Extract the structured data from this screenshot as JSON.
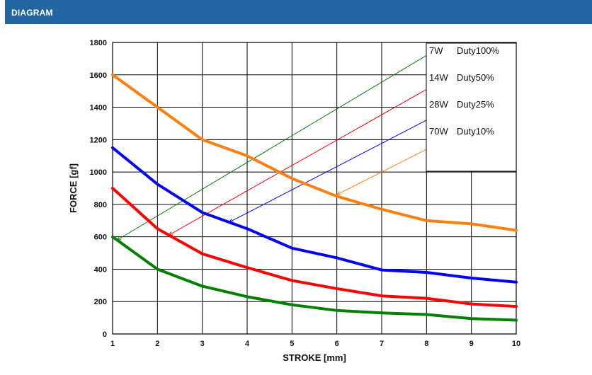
{
  "header": {
    "title": "DIAGRAM"
  },
  "chart_data": {
    "type": "line",
    "title": "",
    "xlabel": "STROKE [mm]",
    "ylabel": "FORCE [gf]",
    "xlim": [
      1,
      10
    ],
    "ylim": [
      0,
      1800
    ],
    "x_ticks": [
      1,
      2,
      3,
      4,
      5,
      6,
      7,
      8,
      9,
      10
    ],
    "y_ticks": [
      0,
      200,
      400,
      600,
      800,
      1000,
      1200,
      1400,
      1600,
      1800
    ],
    "x_tick_labels": [
      "1",
      "2",
      "3",
      "4",
      "5",
      "6",
      "7",
      "8",
      "9",
      "10"
    ],
    "y_tick_labels": [
      "0",
      "200",
      "400",
      "600",
      "800",
      "1000",
      "1200",
      "1400",
      "1600",
      "1800"
    ],
    "grid": true,
    "legend_position": "top-right",
    "series": [
      {
        "name": "70W Duty10%",
        "color": "#ff7f0e",
        "x": [
          1,
          2,
          3,
          4,
          5,
          6,
          7,
          8,
          9,
          10
        ],
        "y": [
          1600,
          1400,
          1200,
          1100,
          960,
          850,
          770,
          700,
          680,
          640
        ]
      },
      {
        "name": "28W Duty25%",
        "color": "#0000ff",
        "x": [
          1,
          2,
          3,
          4,
          5,
          6,
          7,
          8,
          9,
          10
        ],
        "y": [
          1150,
          925,
          750,
          650,
          530,
          470,
          395,
          380,
          345,
          320
        ]
      },
      {
        "name": "14W Duty50%",
        "color": "#ff0000",
        "x": [
          1,
          2,
          3,
          4,
          5,
          6,
          7,
          8,
          9,
          10
        ],
        "y": [
          900,
          650,
          495,
          410,
          330,
          280,
          235,
          220,
          185,
          170
        ]
      },
      {
        "name": "7W Duty100%",
        "color": "#008000",
        "x": [
          1,
          2,
          3,
          4,
          5,
          6,
          7,
          8,
          9,
          10
        ],
        "y": [
          600,
          400,
          295,
          230,
          180,
          145,
          130,
          120,
          95,
          85
        ]
      }
    ],
    "annotations": [
      {
        "label": "7W Duty100%",
        "color": "#008000",
        "from": [
          1.1,
          580
        ],
        "to": [
          8,
          1720
        ]
      },
      {
        "label": "14W Duty50%",
        "color": "#ff0000",
        "from": [
          2.25,
          610
        ],
        "to": [
          8,
          1510
        ]
      },
      {
        "label": "28W Duty25%",
        "color": "#0000ff",
        "from": [
          3.6,
          690
        ],
        "to": [
          8,
          1320
        ]
      },
      {
        "label": "70W Duty10%",
        "color": "#ff7f0e",
        "from": [
          6.0,
          860
        ],
        "to": [
          8,
          1140
        ]
      }
    ],
    "legend": [
      {
        "power": "7W",
        "duty": "Duty100%"
      },
      {
        "power": "14W",
        "duty": "Duty50%"
      },
      {
        "power": "28W",
        "duty": "Duty25%"
      },
      {
        "power": "70W",
        "duty": "Duty10%"
      }
    ]
  }
}
